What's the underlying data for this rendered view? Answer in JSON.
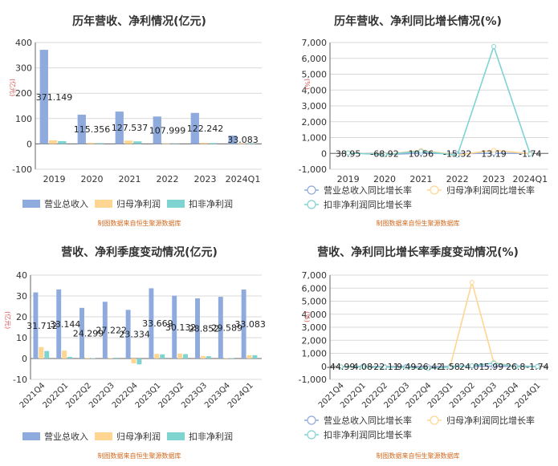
{
  "credit": "制图数据来自恒生聚源数据库",
  "colors": {
    "revenue": "#8faadc",
    "netprofit": "#ffd592",
    "deducted": "#7fd3d1",
    "grid": "#d9d9d9",
    "axis": "#666666",
    "labelRed": "#d9534f"
  },
  "chart_data": [
    {
      "type": "bar",
      "title": "历年营收、净利情况(亿元)",
      "ylabel": "(亿元)",
      "ylim": [
        -100,
        400
      ],
      "yticks": [
        -100,
        0,
        100,
        200,
        300,
        400
      ],
      "categories": [
        "2019",
        "2020",
        "2021",
        "2022",
        "2023",
        "2024Q1"
      ],
      "series": [
        {
          "name": "营业总收入",
          "values": [
            371.149,
            115.356,
            127.537,
            107.999,
            122.242,
            33.083
          ]
        },
        {
          "name": "归母净利润",
          "values": [
            14,
            4,
            13,
            1,
            4,
            2
          ]
        },
        {
          "name": "扣非净利润",
          "values": [
            11,
            3,
            10,
            0,
            3,
            2
          ]
        }
      ],
      "labels": [
        "371.149",
        "115.356",
        "127.537",
        "107.999",
        "122.242",
        "33.083"
      ],
      "legend": "bottom"
    },
    {
      "type": "line",
      "title": "历年营收、净利同比增长情况(%)",
      "ylabel": "(%)",
      "ylim": [
        -1000,
        7000
      ],
      "yticks": [
        -1000,
        0,
        1000,
        2000,
        3000,
        4000,
        5000,
        6000,
        7000
      ],
      "categories": [
        "2019",
        "2020",
        "2021",
        "2022",
        "2023",
        "2024Q1"
      ],
      "series": [
        {
          "name": "营业总收入同比增长率",
          "values": [
            38.95,
            -68.92,
            10.56,
            -15.32,
            13.19,
            -1.74
          ]
        },
        {
          "name": "归母净利润同比增长率",
          "values": [
            40,
            -70,
            190,
            -100,
            200,
            -20
          ]
        },
        {
          "name": "扣非净利润同比增长率",
          "values": [
            30,
            -80,
            140,
            -120,
            6750,
            -50
          ]
        }
      ],
      "labels": [
        "38.95",
        "-68.92",
        "10.56",
        "-15.32",
        "13.19",
        "-1.74"
      ],
      "legend": "bottom"
    },
    {
      "type": "bar",
      "title": "营收、净利季度变动情况(亿元)",
      "ylabel": "(亿元)",
      "ylim": [
        -10,
        40
      ],
      "yticks": [
        -10,
        0,
        10,
        20,
        30,
        40
      ],
      "categories": [
        "2021Q4",
        "2022Q1",
        "2022Q2",
        "2022Q3",
        "2022Q4",
        "2023Q1",
        "2023Q2",
        "2023Q3",
        "2023Q4",
        "2024Q1"
      ],
      "series": [
        {
          "name": "营业总收入",
          "values": [
            31.712,
            33.144,
            24.299,
            27.222,
            23.334,
            33.669,
            30.132,
            28.852,
            29.589,
            33.083
          ]
        },
        {
          "name": "归母净利润",
          "values": [
            5.5,
            3.8,
            0.3,
            0.3,
            -2.3,
            2.2,
            2.4,
            1.2,
            0.2,
            1.6
          ]
        },
        {
          "name": "扣非净利润",
          "values": [
            3.6,
            0.8,
            0.2,
            0.4,
            -2.8,
            2.0,
            2.1,
            1.1,
            0.2,
            1.6
          ]
        }
      ],
      "labels": [
        "31.712",
        "33.144",
        "24.299",
        "27.222",
        "23.334",
        "33.669",
        "30.132",
        "28.852",
        "29.589",
        "33.083"
      ],
      "legend": "bottom"
    },
    {
      "type": "line",
      "title": "营收、净利同比增长率季度变动情况(%)",
      "ylabel": "(%)",
      "ylim": [
        -1000,
        7000
      ],
      "yticks": [
        -1000,
        0,
        1000,
        2000,
        3000,
        4000,
        5000,
        6000,
        7000
      ],
      "categories": [
        "2021Q4",
        "2022Q1",
        "2022Q2",
        "2022Q3",
        "2022Q4",
        "2023Q1",
        "2023Q2",
        "2023Q3",
        "2023Q4",
        "2024Q1"
      ],
      "series": [
        {
          "name": "营业总收入同比增长率",
          "values": [
            -44.99,
            4.08,
            -22.11,
            9.49,
            -26.42,
            1.58,
            24.01,
            5.99,
            26.8,
            -1.74
          ]
        },
        {
          "name": "归母净利润同比增长率",
          "values": [
            -30,
            -40,
            -60,
            -50,
            -150,
            -40,
            6450,
            300,
            -20,
            -30
          ]
        },
        {
          "name": "扣非净利润同比增长率",
          "values": [
            -40,
            -50,
            -70,
            -60,
            -170,
            -50,
            50,
            250,
            -30,
            -20
          ]
        }
      ],
      "labels": [
        "-44.99",
        "4.08",
        "-22.11",
        "9.49",
        "-26.42",
        "1.58",
        "24.01",
        "5.99",
        "26.8",
        "-1.74"
      ],
      "legend": "bottom"
    }
  ]
}
